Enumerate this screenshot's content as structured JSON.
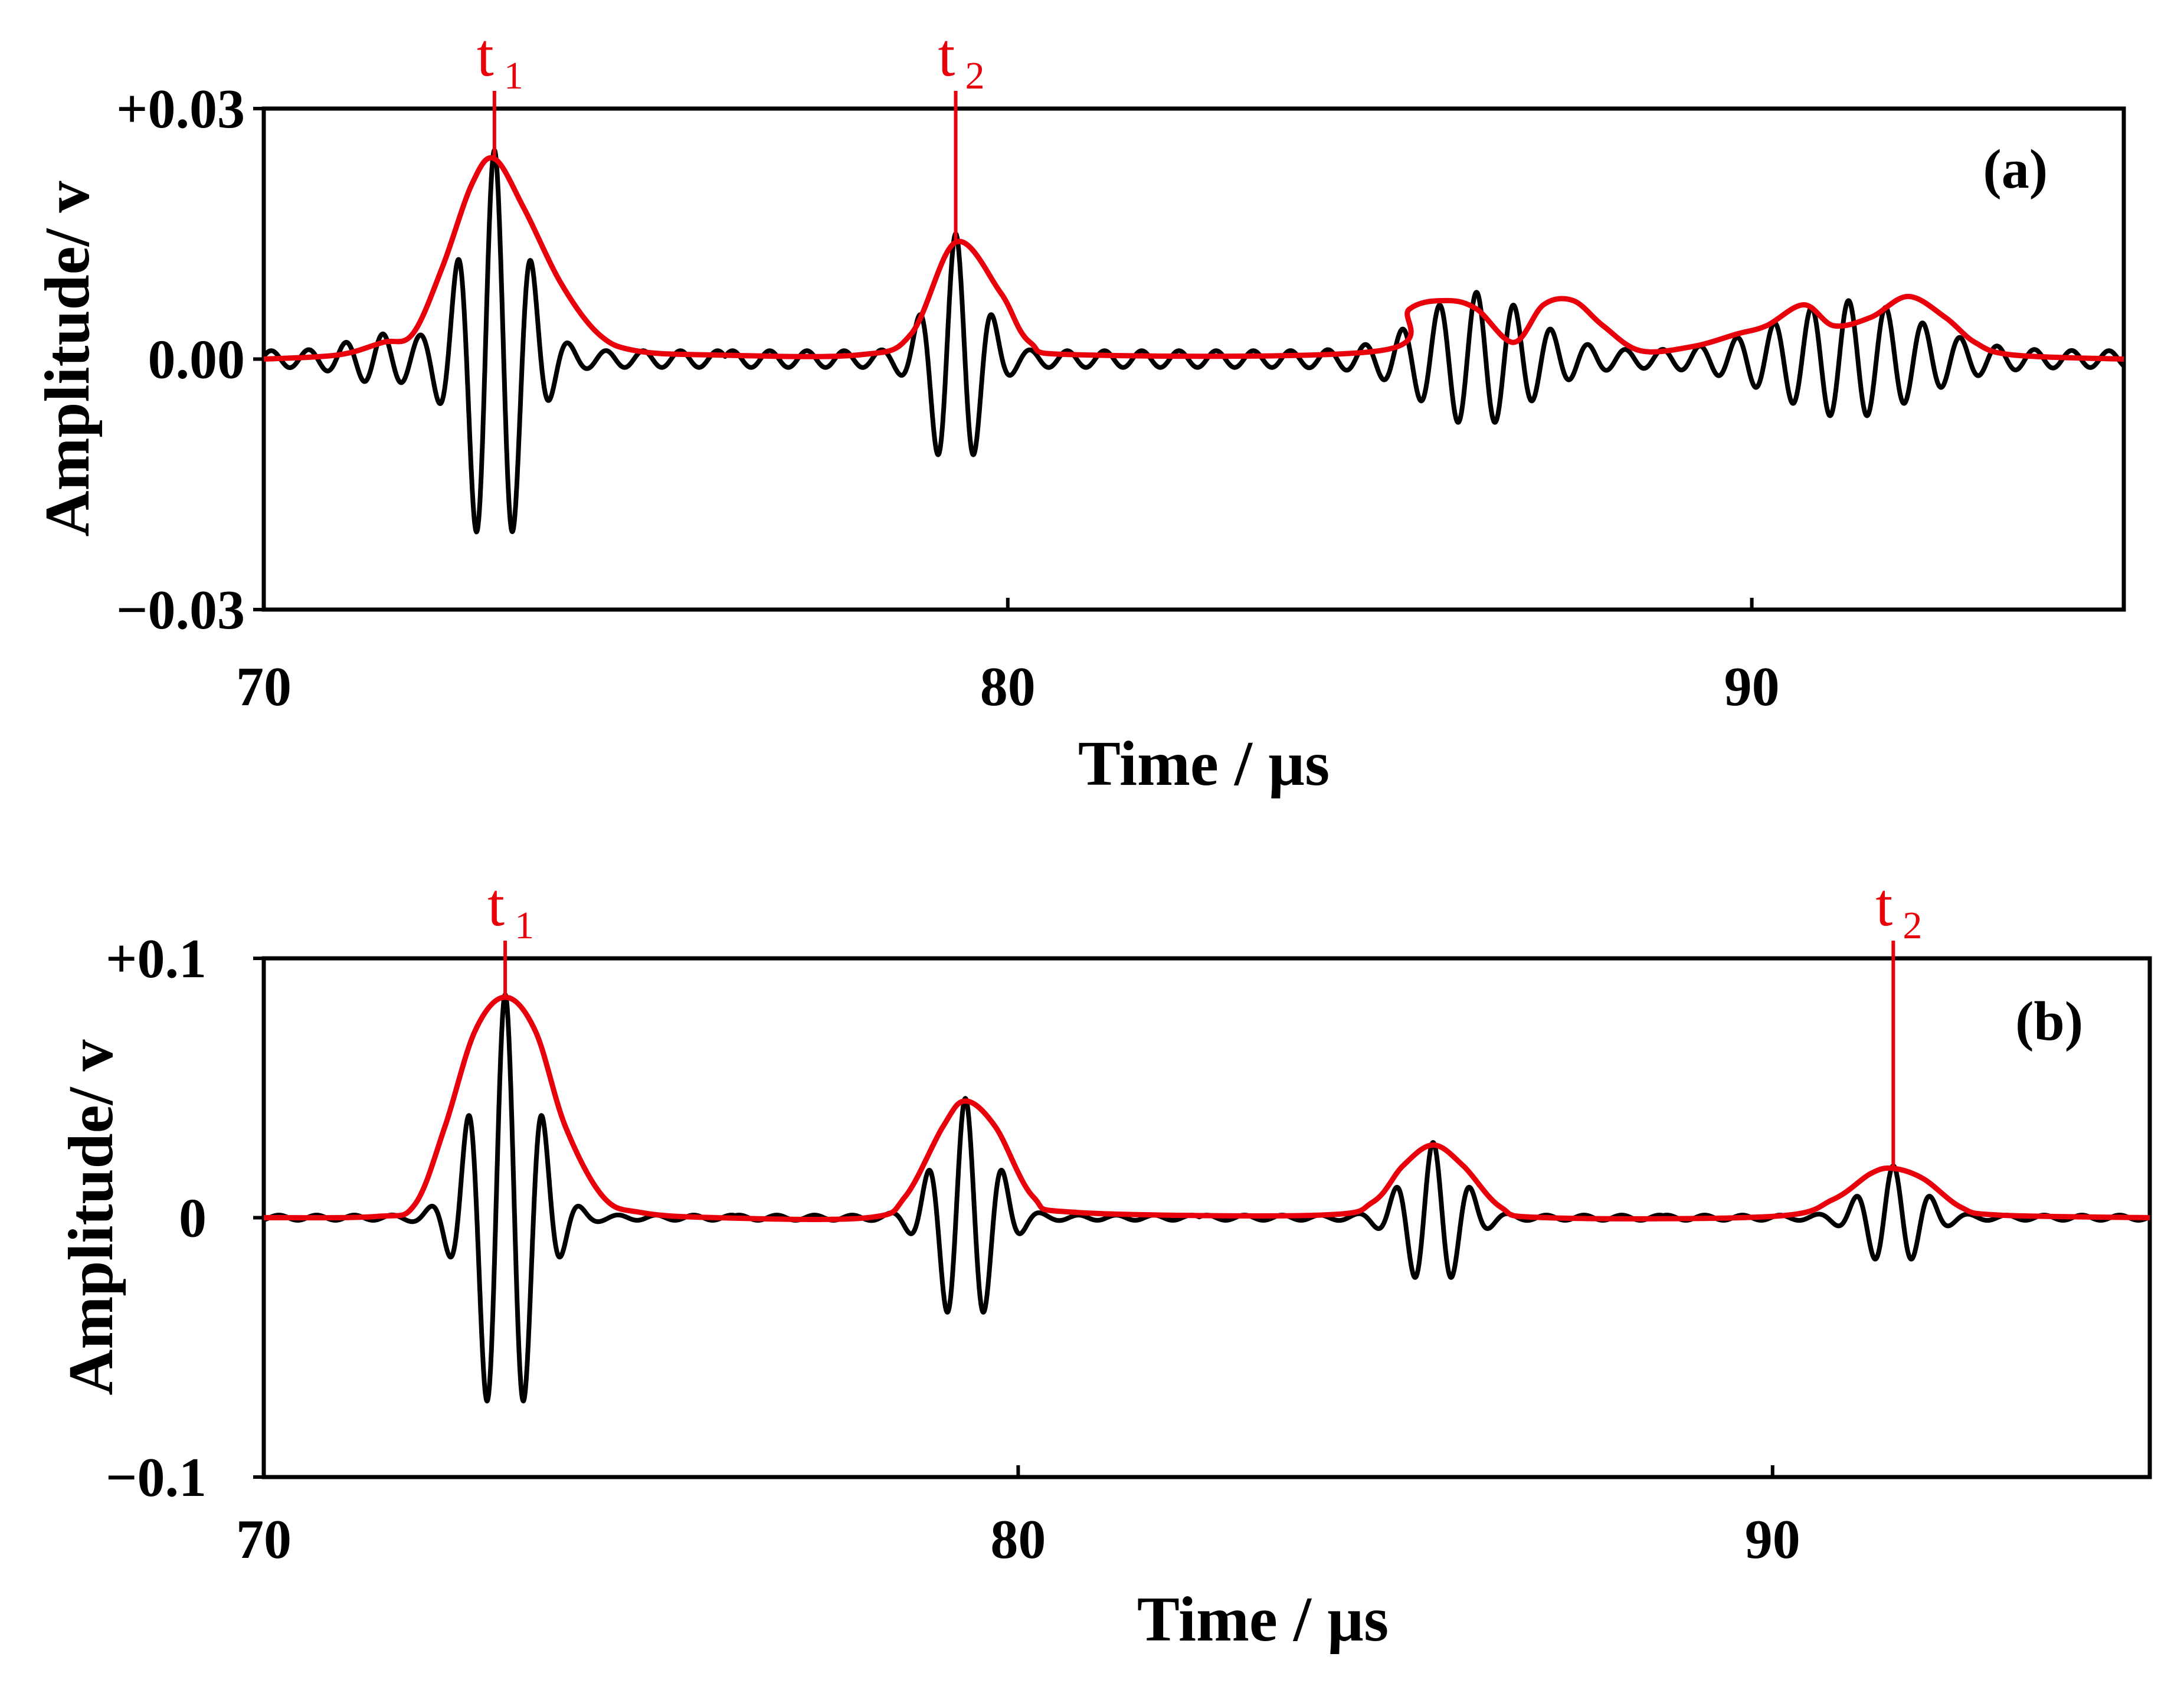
{
  "colors": {
    "signal": "#000000",
    "envelope": "#e8000b",
    "axis": "#000000",
    "background": "#ffffff"
  },
  "chart_data": [
    {
      "type": "line",
      "panel_label": "(a)",
      "xlabel": "Time / µs",
      "ylabel": "Amplitude/ v",
      "xlim": [
        70,
        95
      ],
      "ylim": [
        -0.03,
        0.03
      ],
      "xticks": [
        70,
        80,
        90
      ],
      "xtick_labels": [
        "70",
        "80",
        "90"
      ],
      "yticks": [
        0.03,
        0.0,
        -0.03
      ],
      "ytick_labels": [
        "+0.03",
        "0.00",
        "−0.03"
      ],
      "grid": false,
      "carrier_frequency_MHz": 2.0,
      "markers": [
        {
          "label": "t",
          "subscript": "1",
          "x": 73.1
        },
        {
          "label": "t",
          "subscript": "2",
          "x": 79.3
        }
      ],
      "series": [
        {
          "role": "signal",
          "wave_packets": [
            {
              "center_us": 71.6,
              "peak_amplitude": 0.002,
              "width_us": 0.6
            },
            {
              "center_us": 73.1,
              "peak_amplitude": 0.024,
              "width_us": 0.55
            },
            {
              "center_us": 79.3,
              "peak_amplitude": 0.014,
              "width_us": 0.45
            },
            {
              "center_us": 86.3,
              "peak_amplitude": 0.007,
              "width_us": 1.0
            },
            {
              "center_us": 91.3,
              "peak_amplitude": 0.006,
              "width_us": 1.3
            }
          ],
          "baseline_amplitude": 0.001
        },
        {
          "role": "envelope",
          "points": [
            [
              70,
              0.0
            ],
            [
              71.0,
              0.0005
            ],
            [
              71.6,
              0.002
            ],
            [
              72.0,
              0.003
            ],
            [
              72.4,
              0.011
            ],
            [
              72.8,
              0.021
            ],
            [
              73.1,
              0.024
            ],
            [
              73.5,
              0.018
            ],
            [
              74.0,
              0.009
            ],
            [
              74.5,
              0.003
            ],
            [
              75.0,
              0.001
            ],
            [
              76.0,
              0.0005
            ],
            [
              78.0,
              0.0005
            ],
            [
              78.7,
              0.003
            ],
            [
              79.3,
              0.014
            ],
            [
              79.9,
              0.008
            ],
            [
              80.3,
              0.002
            ],
            [
              81.0,
              0.0005
            ],
            [
              85.0,
              0.001
            ],
            [
              85.4,
              0.006
            ],
            [
              85.9,
              0.007
            ],
            [
              86.3,
              0.006
            ],
            [
              86.8,
              0.002
            ],
            [
              87.2,
              0.0065
            ],
            [
              87.6,
              0.007
            ],
            [
              88.0,
              0.004
            ],
            [
              88.5,
              0.001
            ],
            [
              89.2,
              0.0015
            ],
            [
              89.8,
              0.003
            ],
            [
              90.2,
              0.004
            ],
            [
              90.7,
              0.0065
            ],
            [
              91.1,
              0.004
            ],
            [
              91.6,
              0.005
            ],
            [
              92.1,
              0.0075
            ],
            [
              92.6,
              0.005
            ],
            [
              93.0,
              0.002
            ],
            [
              93.5,
              0.0005
            ],
            [
              95.0,
              0.0
            ]
          ]
        }
      ]
    },
    {
      "type": "line",
      "panel_label": "(b)",
      "xlabel": "Time / µs",
      "ylabel": "Amplitude/ v",
      "xlim": [
        70,
        95
      ],
      "ylim": [
        -0.1,
        0.1
      ],
      "xticks": [
        70,
        80,
        90
      ],
      "xtick_labels": [
        "70",
        "80",
        "90"
      ],
      "yticks": [
        0.1,
        0,
        -0.1
      ],
      "ytick_labels": [
        "+0.1",
        "0",
        "−0.1"
      ],
      "grid": false,
      "carrier_frequency_MHz": 2.0,
      "markers": [
        {
          "label": "t",
          "subscript": "1",
          "x": 73.2
        },
        {
          "label": "t",
          "subscript": "2",
          "x": 91.6
        }
      ],
      "series": [
        {
          "role": "signal",
          "wave_packets": [
            {
              "center_us": 73.2,
              "peak_amplitude": 0.085,
              "width_us": 0.55
            },
            {
              "center_us": 79.3,
              "peak_amplitude": 0.045,
              "width_us": 0.5
            },
            {
              "center_us": 85.5,
              "peak_amplitude": 0.028,
              "width_us": 0.5
            },
            {
              "center_us": 91.6,
              "peak_amplitude": 0.019,
              "width_us": 0.5
            }
          ],
          "baseline_amplitude": 0.001
        },
        {
          "role": "envelope",
          "points": [
            [
              70,
              0.0
            ],
            [
              71.5,
              0.0005
            ],
            [
              72.0,
              0.005
            ],
            [
              72.4,
              0.035
            ],
            [
              72.8,
              0.072
            ],
            [
              73.2,
              0.085
            ],
            [
              73.6,
              0.072
            ],
            [
              74.0,
              0.035
            ],
            [
              74.5,
              0.008
            ],
            [
              75.0,
              0.002
            ],
            [
              76.0,
              0.0
            ],
            [
              78.0,
              0.0
            ],
            [
              78.5,
              0.008
            ],
            [
              79.0,
              0.035
            ],
            [
              79.3,
              0.045
            ],
            [
              79.7,
              0.035
            ],
            [
              80.2,
              0.008
            ],
            [
              80.8,
              0.002
            ],
            [
              84.0,
              0.001
            ],
            [
              84.7,
              0.006
            ],
            [
              85.1,
              0.02
            ],
            [
              85.5,
              0.028
            ],
            [
              85.9,
              0.02
            ],
            [
              86.4,
              0.004
            ],
            [
              87.0,
              0.0
            ],
            [
              90.0,
              0.0005
            ],
            [
              90.8,
              0.007
            ],
            [
              91.3,
              0.017
            ],
            [
              91.6,
              0.019
            ],
            [
              92.0,
              0.015
            ],
            [
              92.5,
              0.004
            ],
            [
              93.0,
              0.001
            ],
            [
              95.0,
              0.0
            ]
          ]
        }
      ]
    }
  ]
}
